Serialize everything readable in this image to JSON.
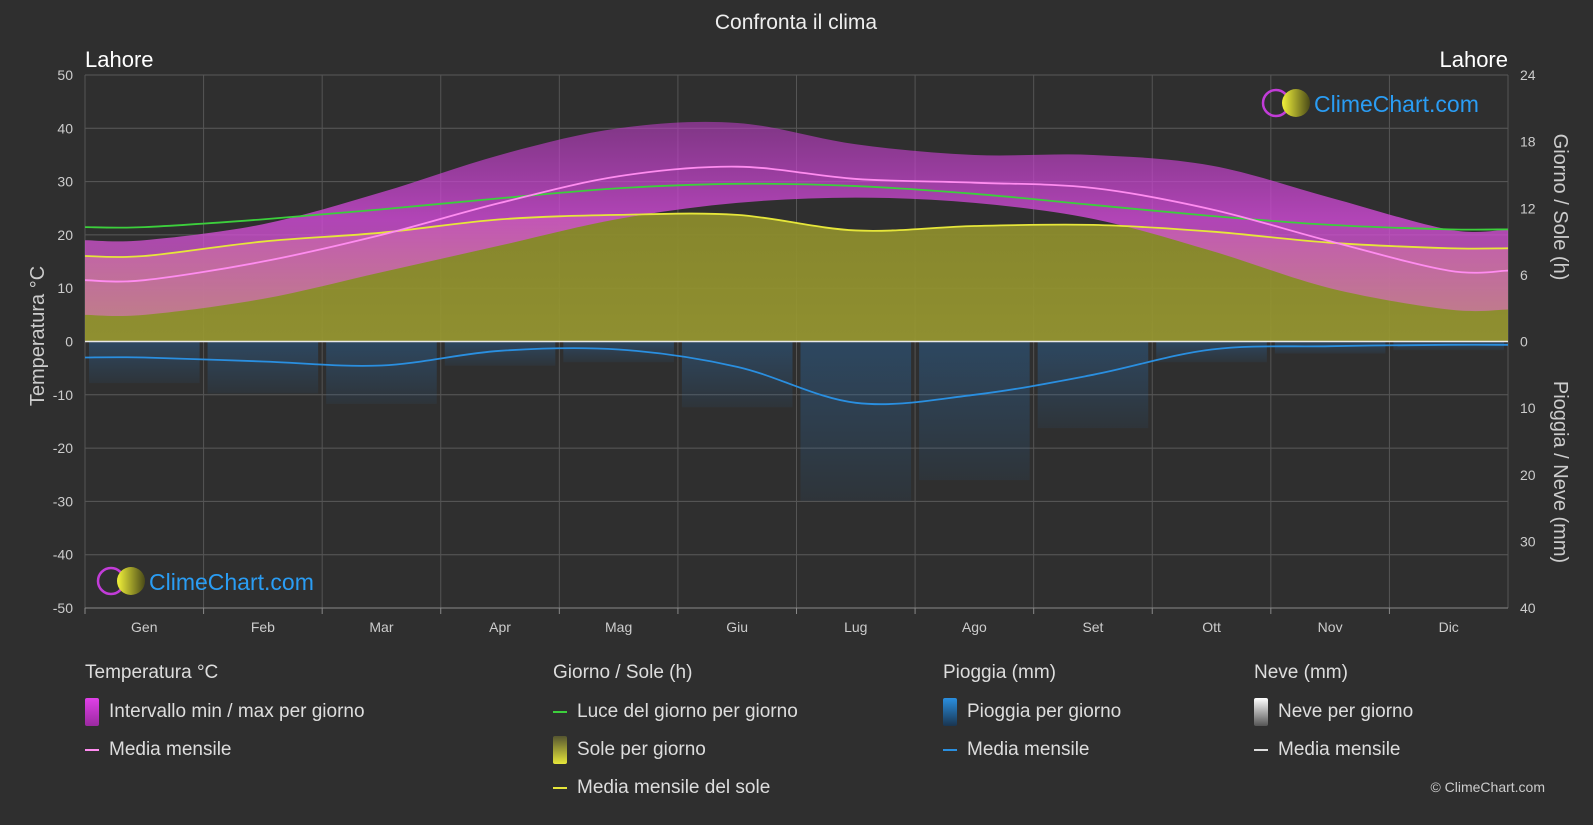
{
  "title": "Confronta il clima",
  "location_left": "Lahore",
  "location_right": "Lahore",
  "watermark_text": "ClimeChart.com",
  "copyright": "© ClimeChart.com",
  "colors": {
    "background": "#2f2f2f",
    "temp_range": "#d24ad8",
    "temp_mean": "#ff8cf0",
    "daylight": "#3ccf3c",
    "sunshine_fill": "#8e8e2a",
    "sunshine_mean": "#e6e63a",
    "rain": "#2a6fb0",
    "rain_mean": "#2a8fe0",
    "snow": "#dddddd",
    "brand_blue": "#2a9df4"
  },
  "legend": {
    "temperature": {
      "heading": "Temperatura °C",
      "items": [
        {
          "label": "Intervallo min / max per giorno"
        },
        {
          "label": "Media mensile"
        }
      ]
    },
    "daylight": {
      "heading": "Giorno / Sole (h)",
      "items": [
        {
          "label": "Luce del giorno per giorno"
        },
        {
          "label": "Sole per giorno"
        },
        {
          "label": "Media mensile del sole"
        }
      ]
    },
    "rain": {
      "heading": "Pioggia (mm)",
      "items": [
        {
          "label": "Pioggia per giorno"
        },
        {
          "label": "Media mensile"
        }
      ]
    },
    "snow": {
      "heading": "Neve (mm)",
      "items": [
        {
          "label": "Neve per giorno"
        },
        {
          "label": "Media mensile"
        }
      ]
    }
  },
  "chart_data": {
    "type": "area",
    "title": "Confronta il clima",
    "categories": [
      "Gen",
      "Feb",
      "Mar",
      "Apr",
      "Mag",
      "Giu",
      "Lug",
      "Ago",
      "Set",
      "Ott",
      "Nov",
      "Dic"
    ],
    "y_left": {
      "label": "Temperatura °C",
      "min": -50,
      "max": 50,
      "ticks": [
        50,
        40,
        30,
        20,
        10,
        0,
        -10,
        -20,
        -30,
        -40,
        -50
      ]
    },
    "y_right_top": {
      "label": "Giorno / Sole (h)",
      "min": 0,
      "max": 24,
      "ticks": [
        24,
        18,
        12,
        6,
        0
      ]
    },
    "y_right_bottom": {
      "label": "Pioggia / Neve (mm)",
      "min": 0,
      "max": 40,
      "ticks": [
        10,
        20,
        30,
        40
      ]
    },
    "grid": true,
    "series": [
      {
        "name": "Intervallo min / max per giorno",
        "kind": "band",
        "axis": "temp",
        "min": [
          5,
          8,
          13,
          18,
          23,
          26,
          27,
          26,
          23,
          17,
          10,
          6
        ],
        "max": [
          19,
          22,
          28,
          35,
          40,
          41,
          37,
          35,
          35,
          33,
          27,
          21
        ]
      },
      {
        "name": "Media mensile",
        "kind": "line",
        "axis": "temp",
        "values": [
          11.5,
          15,
          20,
          26,
          31,
          32.8,
          30.5,
          29.8,
          28.8,
          24.8,
          18.8,
          13.3
        ]
      },
      {
        "name": "Luce del giorno per giorno",
        "kind": "line",
        "axis": "hours",
        "values": [
          10.3,
          11.0,
          11.9,
          12.9,
          13.8,
          14.2,
          14.0,
          13.3,
          12.3,
          11.3,
          10.5,
          10.1
        ]
      },
      {
        "name": "Sole per giorno",
        "kind": "area",
        "axis": "hours",
        "values": [
          7.7,
          9.0,
          9.8,
          11.0,
          11.4,
          11.4,
          10.0,
          10.4,
          10.5,
          9.9,
          8.9,
          8.4
        ]
      },
      {
        "name": "Media mensile del sole",
        "kind": "line",
        "axis": "hours",
        "values": [
          7.7,
          9.0,
          9.8,
          11.0,
          11.4,
          11.4,
          10.0,
          10.4,
          10.5,
          9.9,
          8.9,
          8.4
        ]
      },
      {
        "name": "Pioggia per giorno",
        "kind": "bars",
        "axis": "rain",
        "values": [
          2.4,
          3.0,
          3.6,
          1.4,
          1.2,
          3.8,
          9.2,
          8.0,
          5.0,
          1.2,
          0.7,
          0.5
        ]
      },
      {
        "name": "Media mensile",
        "kind": "line",
        "axis": "rain",
        "values": [
          2.4,
          3.0,
          3.6,
          1.4,
          1.2,
          3.8,
          9.2,
          8.0,
          5.0,
          1.2,
          0.7,
          0.5
        ]
      },
      {
        "name": "Neve per giorno",
        "kind": "bars",
        "axis": "rain",
        "values": [
          0,
          0,
          0,
          0,
          0,
          0,
          0,
          0,
          0,
          0,
          0,
          0
        ]
      }
    ]
  }
}
